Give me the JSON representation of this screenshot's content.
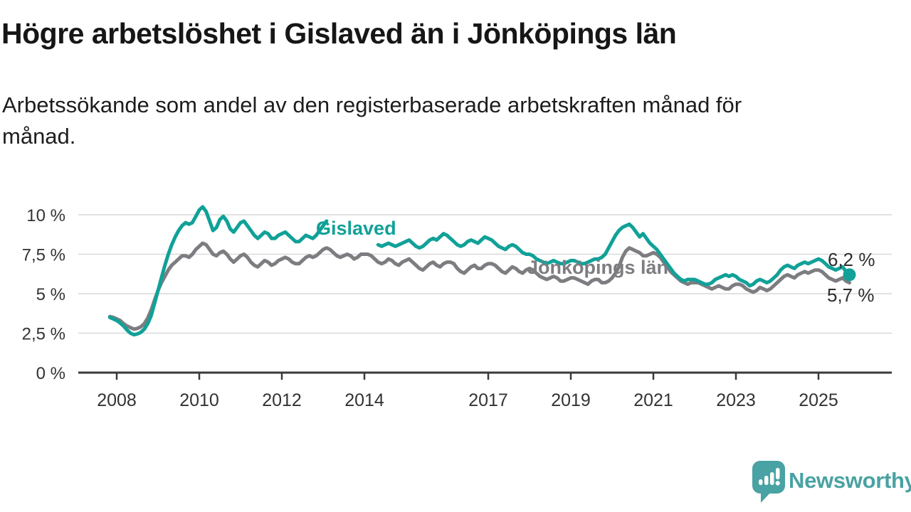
{
  "title": "Högre arbetslöshet i Gislaved än i Jönköpings län",
  "subtitle_lines": [
    "Arbetssökande som andel av den registerbaserade arbetskraften månad för",
    "månad."
  ],
  "brand": {
    "name": "Newsworthy",
    "color": "#49A2A3"
  },
  "chart_data": {
    "type": "line",
    "title": "Högre arbetslöshet i Gislaved än i Jönköpings län",
    "subtitle": "Arbetssökande som andel av den registerbaserade arbetskraften månad för månad.",
    "x_start": 2007.8333,
    "x_step_months": 1,
    "x_ticks": [
      2008,
      2010,
      2012,
      2014,
      2017,
      2019,
      2021,
      2023,
      2025
    ],
    "y_ticks": [
      0,
      2.5,
      5,
      7.5,
      10
    ],
    "y_tick_labels": [
      "0 %",
      "2,5 %",
      "5 %",
      "7,5 %",
      "10 %"
    ],
    "ylim": [
      0,
      11
    ],
    "grid": true,
    "grid_color": "#d9d9d9",
    "axis_color": "#3a3a3a",
    "legend_position": "inline-labels",
    "series": [
      {
        "name": "Jönköpings län",
        "color": "#7D7D81",
        "end_label": "5,7 %",
        "end_dot": false,
        "values": [
          3.55,
          3.5,
          3.4,
          3.3,
          3.1,
          2.95,
          2.85,
          2.75,
          2.8,
          2.9,
          3.1,
          3.45,
          3.95,
          4.6,
          5.2,
          5.7,
          6.1,
          6.5,
          6.8,
          7.0,
          7.2,
          7.4,
          7.4,
          7.3,
          7.5,
          7.8,
          8.0,
          8.2,
          8.1,
          7.8,
          7.5,
          7.4,
          7.6,
          7.7,
          7.5,
          7.2,
          7.0,
          7.2,
          7.4,
          7.5,
          7.3,
          7.0,
          6.8,
          6.7,
          6.9,
          7.1,
          7.0,
          6.8,
          6.9,
          7.1,
          7.2,
          7.3,
          7.2,
          7.0,
          6.9,
          6.9,
          7.1,
          7.3,
          7.4,
          7.3,
          7.4,
          7.6,
          7.8,
          7.9,
          7.8,
          7.6,
          7.4,
          7.3,
          7.4,
          7.5,
          7.4,
          7.2,
          7.3,
          7.5,
          7.5,
          7.5,
          7.4,
          7.2,
          7.0,
          6.9,
          7.0,
          7.2,
          7.1,
          6.9,
          6.8,
          7.0,
          7.1,
          7.2,
          7.0,
          6.8,
          6.6,
          6.5,
          6.7,
          6.9,
          7.0,
          6.8,
          6.7,
          6.9,
          7.0,
          7.0,
          6.9,
          6.6,
          6.4,
          6.3,
          6.5,
          6.7,
          6.8,
          6.6,
          6.6,
          6.8,
          6.9,
          6.9,
          6.8,
          6.6,
          6.4,
          6.3,
          6.5,
          6.7,
          6.6,
          6.4,
          6.3,
          6.5,
          6.6,
          6.5,
          6.3,
          6.1,
          6.0,
          5.9,
          6.0,
          6.1,
          6.0,
          5.8,
          5.8,
          5.9,
          6.0,
          6.0,
          5.9,
          5.8,
          5.7,
          5.6,
          5.8,
          5.9,
          5.9,
          5.7,
          5.7,
          5.8,
          6.0,
          6.3,
          6.7,
          7.3,
          7.7,
          7.9,
          7.8,
          7.7,
          7.6,
          7.4,
          7.4,
          7.5,
          7.6,
          7.5,
          7.3,
          7.0,
          6.7,
          6.4,
          6.2,
          6.0,
          5.8,
          5.7,
          5.6,
          5.7,
          5.7,
          5.7,
          5.6,
          5.5,
          5.4,
          5.3,
          5.4,
          5.5,
          5.4,
          5.3,
          5.3,
          5.5,
          5.6,
          5.6,
          5.5,
          5.3,
          5.2,
          5.1,
          5.2,
          5.4,
          5.3,
          5.2,
          5.3,
          5.5,
          5.7,
          5.9,
          6.1,
          6.2,
          6.1,
          6.0,
          6.2,
          6.3,
          6.4,
          6.3,
          6.4,
          6.5,
          6.5,
          6.4,
          6.2,
          6.0,
          5.9,
          5.8,
          5.9,
          6.0,
          5.8,
          5.7
        ]
      },
      {
        "name": "Gislaved",
        "color": "#11A198",
        "end_label": "6,2 %",
        "end_dot": true,
        "values": [
          3.5,
          3.4,
          3.3,
          3.15,
          2.95,
          2.7,
          2.5,
          2.4,
          2.45,
          2.55,
          2.75,
          3.1,
          3.6,
          4.4,
          5.2,
          6.0,
          6.8,
          7.5,
          8.1,
          8.6,
          9.0,
          9.3,
          9.5,
          9.4,
          9.5,
          9.9,
          10.3,
          10.5,
          10.2,
          9.6,
          9.0,
          9.2,
          9.7,
          9.9,
          9.6,
          9.1,
          8.9,
          9.2,
          9.5,
          9.6,
          9.3,
          9.0,
          8.7,
          8.5,
          8.7,
          8.9,
          8.8,
          8.5,
          8.5,
          8.7,
          8.8,
          8.9,
          8.7,
          8.5,
          8.3,
          8.3,
          8.5,
          8.7,
          8.6,
          8.5,
          8.7,
          9.0,
          9.3,
          9.6,
          null,
          null,
          null,
          null,
          null,
          null,
          null,
          null,
          null,
          null,
          null,
          null,
          null,
          null,
          8.1,
          8.0,
          8.1,
          8.2,
          8.1,
          8.0,
          8.1,
          8.2,
          8.3,
          8.4,
          8.2,
          8.0,
          7.9,
          8.0,
          8.2,
          8.4,
          8.5,
          8.4,
          8.6,
          8.8,
          8.7,
          8.5,
          8.3,
          8.1,
          8.0,
          8.1,
          8.3,
          8.4,
          8.3,
          8.2,
          8.4,
          8.6,
          8.5,
          8.4,
          8.2,
          8.0,
          7.9,
          7.8,
          8.0,
          8.1,
          8.0,
          7.8,
          7.6,
          7.5,
          7.5,
          7.4,
          7.2,
          7.1,
          7.0,
          6.9,
          7.0,
          7.1,
          7.0,
          6.9,
          6.9,
          7.0,
          7.1,
          7.1,
          7.0,
          6.9,
          6.9,
          7.0,
          7.1,
          7.2,
          7.2,
          7.3,
          7.5,
          7.9,
          8.3,
          8.7,
          9.0,
          9.2,
          9.3,
          9.4,
          9.2,
          8.9,
          8.6,
          8.8,
          8.5,
          8.2,
          8.0,
          7.8,
          7.5,
          7.2,
          6.9,
          6.6,
          6.3,
          6.1,
          5.9,
          5.8,
          5.9,
          5.9,
          5.9,
          5.8,
          5.7,
          5.6,
          5.6,
          5.7,
          5.9,
          6.0,
          6.1,
          6.2,
          6.1,
          6.2,
          6.1,
          5.9,
          5.8,
          5.7,
          5.5,
          5.6,
          5.8,
          5.9,
          5.8,
          5.7,
          5.8,
          6.0,
          6.2,
          6.5,
          6.7,
          6.8,
          6.7,
          6.6,
          6.8,
          6.9,
          7.0,
          6.9,
          7.0,
          7.1,
          7.2,
          7.1,
          6.9,
          6.7,
          6.6,
          6.5,
          6.6,
          6.7,
          6.4,
          6.2
        ]
      }
    ]
  }
}
